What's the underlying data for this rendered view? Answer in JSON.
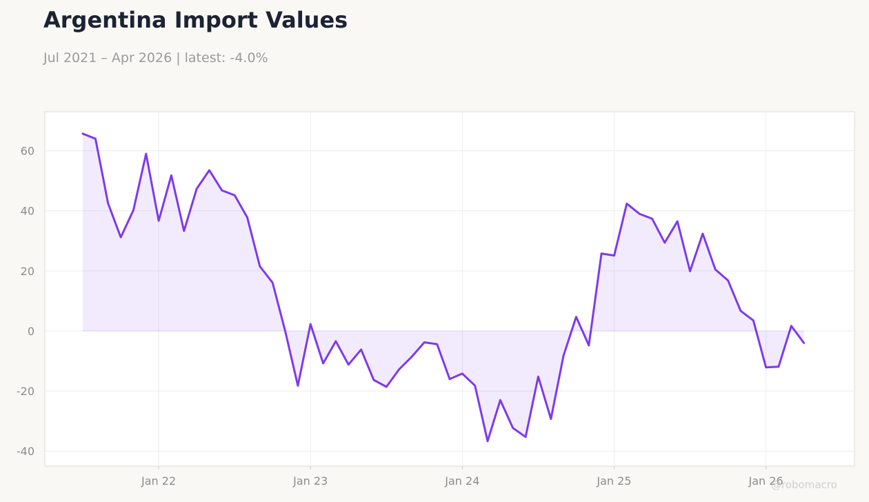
{
  "header": {
    "title": "Argentina Import Values",
    "subtitle": "Jul 2021 – Apr 2026 | latest: -4.0%"
  },
  "watermark": "@robomacro",
  "colors": {
    "line": "#7c3aed",
    "fill": "#7c3aed",
    "background": "#f9f8f5",
    "plot_background": "#ffffff",
    "grid": "#ececec",
    "axis_text": "#8c8c8c"
  },
  "chart_data": {
    "type": "area",
    "title": "Argentina Import Values",
    "subtitle": "Jul 2021 – Apr 2026 | latest: -4.0%",
    "xlabel": "",
    "ylabel": "",
    "ylim": [
      -45,
      73
    ],
    "xlim": [
      "2021-04",
      "2026-08"
    ],
    "yticks": [
      60,
      40,
      20,
      0,
      -20,
      -40
    ],
    "xticks": [
      {
        "date": "2022-01",
        "label": "Jan 22"
      },
      {
        "date": "2023-01",
        "label": "Jan 23"
      },
      {
        "date": "2024-01",
        "label": "Jan 24"
      },
      {
        "date": "2025-01",
        "label": "Jan 25"
      },
      {
        "date": "2026-01",
        "label": "Jan 26"
      }
    ],
    "grid": true,
    "series": [
      {
        "x": [
          "2021-07",
          "2021-08",
          "2021-09",
          "2021-10",
          "2021-11",
          "2021-12",
          "2022-01",
          "2022-02",
          "2022-03",
          "2022-04",
          "2022-05",
          "2022-06",
          "2022-07",
          "2022-08",
          "2022-09",
          "2022-10",
          "2022-11",
          "2022-12",
          "2023-01",
          "2023-02",
          "2023-03",
          "2023-04",
          "2023-05",
          "2023-06",
          "2023-07",
          "2023-08",
          "2023-09",
          "2023-10",
          "2023-11",
          "2023-12",
          "2024-01",
          "2024-02",
          "2024-03",
          "2024-04",
          "2024-05",
          "2024-06",
          "2024-07",
          "2024-08",
          "2024-09",
          "2024-10",
          "2024-11",
          "2024-12",
          "2025-01",
          "2025-02",
          "2025-03",
          "2025-04",
          "2025-05",
          "2025-06",
          "2025-07",
          "2025-08",
          "2025-09",
          "2025-10",
          "2025-11",
          "2025-12",
          "2026-01",
          "2026-02",
          "2026-03",
          "2026-04"
        ],
        "values": [
          65.7,
          64.0,
          42.5,
          31.2,
          40.2,
          59.0,
          36.7,
          51.8,
          33.3,
          47.3,
          53.5,
          46.8,
          45.2,
          37.8,
          21.5,
          16.1,
          0.0,
          -18.2,
          2.3,
          -10.8,
          -3.4,
          -11.2,
          -6.2,
          -16.3,
          -18.6,
          -12.8,
          -8.6,
          -3.8,
          -4.4,
          -16.0,
          -14.2,
          -18.2,
          -36.7,
          -23.0,
          -32.3,
          -35.3,
          -15.2,
          -29.3,
          -8.2,
          4.7,
          -4.8,
          25.8,
          25.1,
          42.4,
          39.0,
          37.4,
          29.4,
          36.5,
          19.9,
          32.4,
          20.5,
          16.8,
          6.7,
          3.5,
          -12.1,
          -11.9,
          1.7,
          -4.0
        ]
      }
    ]
  }
}
